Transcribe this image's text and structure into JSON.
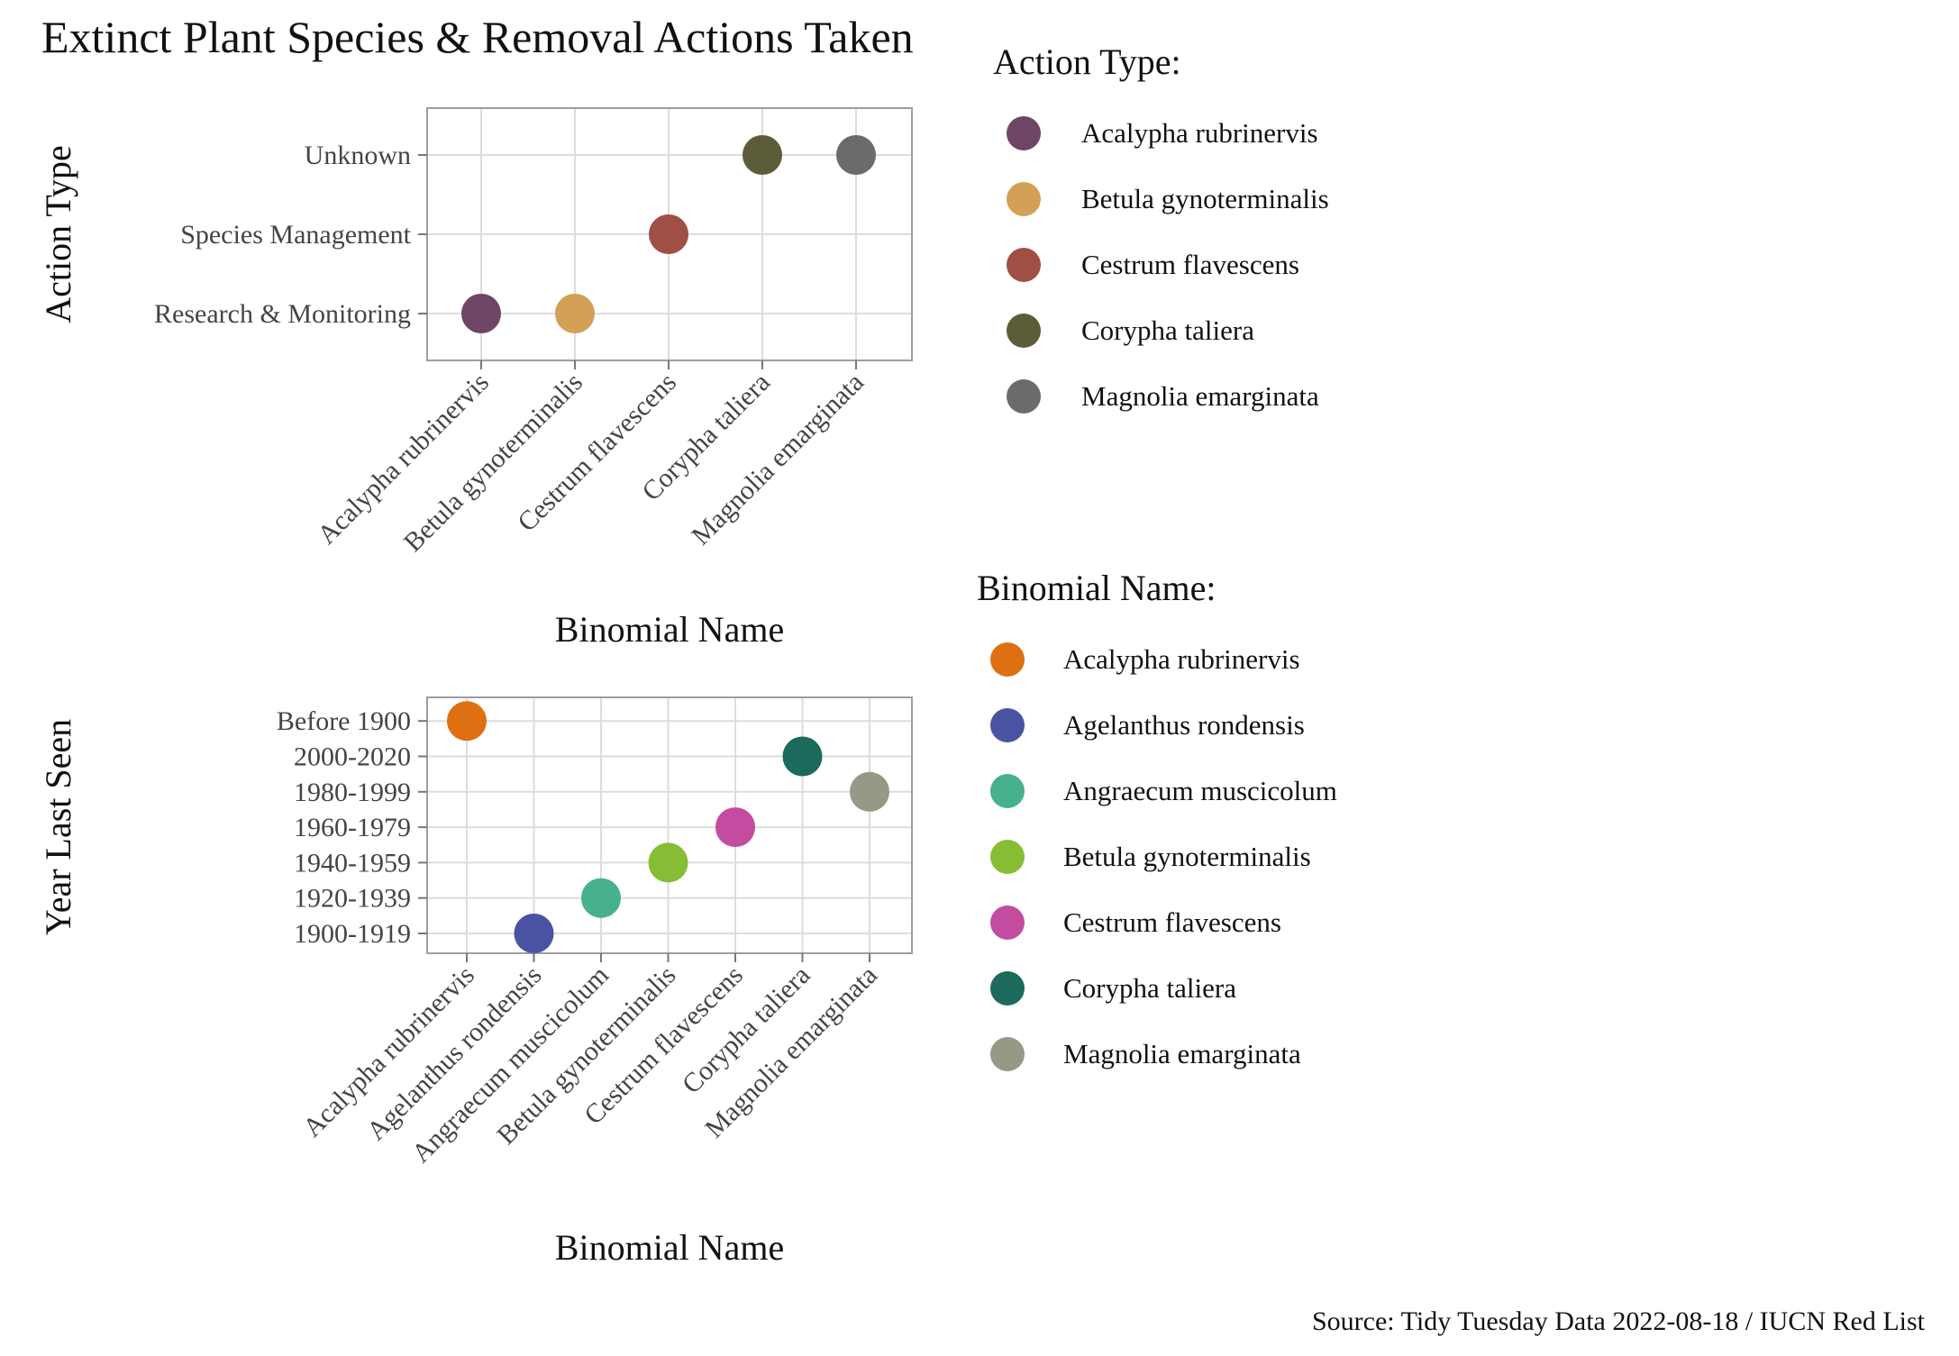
{
  "title": "Extinct Plant Species & Removal Actions Taken",
  "caption": "Source: Tidy Tuesday Data 2022-08-18 / IUCN Red List",
  "chart_data": [
    {
      "type": "scatter",
      "xlabel": "Binomial Name",
      "ylabel": "Action Type",
      "x_categories": [
        "Acalypha rubrinervis",
        "Betula gynoterminalis",
        "Cestrum flavescens",
        "Corypha taliera",
        "Magnolia emarginata"
      ],
      "y_categories": [
        "Research & Monitoring",
        "Species Management",
        "Unknown"
      ],
      "points": [
        {
          "x": "Acalypha rubrinervis",
          "y": "Research & Monitoring",
          "color": "#6e4565"
        },
        {
          "x": "Betula gynoterminalis",
          "y": "Research & Monitoring",
          "color": "#d3a055"
        },
        {
          "x": "Cestrum flavescens",
          "y": "Species Management",
          "color": "#a04f44"
        },
        {
          "x": "Corypha taliera",
          "y": "Unknown",
          "color": "#5d5c38"
        },
        {
          "x": "Magnolia emarginata",
          "y": "Unknown",
          "color": "#6b6b6b"
        }
      ],
      "grid": true,
      "legend": {
        "title": "Action Type:",
        "position": "right",
        "entries": [
          {
            "label": "Acalypha rubrinervis",
            "color": "#6e4565"
          },
          {
            "label": "Betula gynoterminalis",
            "color": "#d3a055"
          },
          {
            "label": "Cestrum flavescens",
            "color": "#a04f44"
          },
          {
            "label": "Corypha taliera",
            "color": "#5d5c38"
          },
          {
            "label": "Magnolia emarginata",
            "color": "#6b6b6b"
          }
        ]
      }
    },
    {
      "type": "scatter",
      "xlabel": "Binomial Name",
      "ylabel": "Year Last Seen",
      "x_categories": [
        "Acalypha rubrinervis",
        "Agelanthus rondensis",
        "Angraecum muscicolum",
        "Betula gynoterminalis",
        "Cestrum flavescens",
        "Corypha taliera",
        "Magnolia emarginata"
      ],
      "y_categories": [
        "1900-1919",
        "1920-1939",
        "1940-1959",
        "1960-1979",
        "1980-1999",
        "2000-2020",
        "Before 1900"
      ],
      "points": [
        {
          "x": "Acalypha rubrinervis",
          "y": "Before 1900",
          "color": "#de7012"
        },
        {
          "x": "Agelanthus rondensis",
          "y": "1900-1919",
          "color": "#4a52a2"
        },
        {
          "x": "Angraecum muscicolum",
          "y": "1920-1939",
          "color": "#46b08f"
        },
        {
          "x": "Betula gynoterminalis",
          "y": "1940-1959",
          "color": "#86bd35"
        },
        {
          "x": "Cestrum flavescens",
          "y": "1960-1979",
          "color": "#c34ca1"
        },
        {
          "x": "Corypha taliera",
          "y": "2000-2020",
          "color": "#1c6a5b"
        },
        {
          "x": "Magnolia emarginata",
          "y": "1980-1999",
          "color": "#959a87"
        }
      ],
      "grid": true,
      "legend": {
        "title": "Binomial Name:",
        "position": "right",
        "entries": [
          {
            "label": "Acalypha rubrinervis",
            "color": "#de7012"
          },
          {
            "label": "Agelanthus rondensis",
            "color": "#4a52a2"
          },
          {
            "label": "Angraecum muscicolum",
            "color": "#46b08f"
          },
          {
            "label": "Betula gynoterminalis",
            "color": "#86bd35"
          },
          {
            "label": "Cestrum flavescens",
            "color": "#c34ca1"
          },
          {
            "label": "Corypha taliera",
            "color": "#1c6a5b"
          },
          {
            "label": "Magnolia emarginata",
            "color": "#959a87"
          }
        ]
      }
    }
  ]
}
